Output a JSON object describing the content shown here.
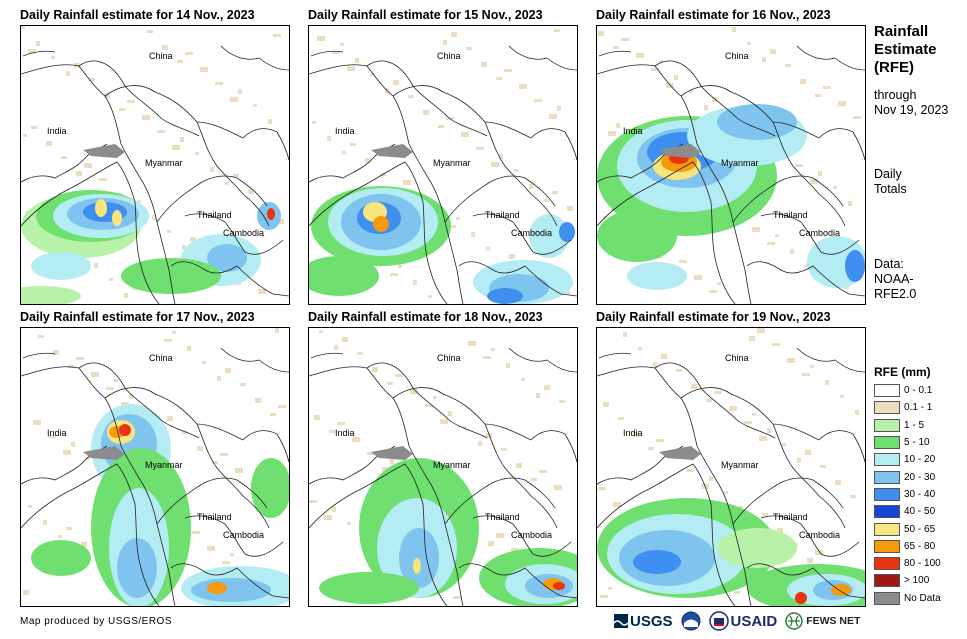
{
  "panels": [
    {
      "title": "Daily Rainfall estimate for 14 Nov., 2023"
    },
    {
      "title": "Daily Rainfall estimate for 15 Nov., 2023"
    },
    {
      "title": "Daily Rainfall estimate for 16 Nov., 2023"
    },
    {
      "title": "Daily Rainfall estimate for 17 Nov., 2023"
    },
    {
      "title": "Daily Rainfall estimate for 18 Nov., 2023"
    },
    {
      "title": "Daily Rainfall estimate for 19 Nov., 2023"
    }
  ],
  "map_labels": {
    "china": "China",
    "india": "India",
    "myanmar": "Myanmar",
    "thailand": "Thailand",
    "cambodia": "Cambodia"
  },
  "side_panel": {
    "title_line1": "Rainfall",
    "title_line2": "Estimate",
    "title_line3": "(RFE)",
    "through_line1": "through",
    "through_line2": "Nov 19, 2023",
    "daily_line1": "Daily",
    "daily_line2": "Totals",
    "data_line1": "Data:",
    "data_line2": "NOAA-",
    "data_line3": "RFE2.0"
  },
  "legend": {
    "title": "RFE (mm)",
    "items": [
      {
        "label": "0 - 0.1",
        "color": "#ffffff"
      },
      {
        "label": "0.1 - 1",
        "color": "#ecdcc0"
      },
      {
        "label": "1 - 5",
        "color": "#b8f2a8"
      },
      {
        "label": "5 - 10",
        "color": "#6fe06f"
      },
      {
        "label": "10 - 20",
        "color": "#b4ecf4"
      },
      {
        "label": "20 - 30",
        "color": "#7ec4ef"
      },
      {
        "label": "30 - 40",
        "color": "#3f8ff0"
      },
      {
        "label": "40 - 50",
        "color": "#1746d6"
      },
      {
        "label": "50 - 65",
        "color": "#f7e57e"
      },
      {
        "label": "65 - 80",
        "color": "#f59a0d"
      },
      {
        "label": "80 - 100",
        "color": "#ea3310"
      },
      {
        "label": "> 100",
        "color": "#a01818"
      },
      {
        "label": "No Data",
        "color": "#8c8c8c"
      }
    ]
  },
  "footer": {
    "credit": "Map produced by USGS/EROS",
    "logo_usgs": "USGS",
    "logo_usaid": "USAID",
    "logo_fews": "FEWS NET"
  }
}
